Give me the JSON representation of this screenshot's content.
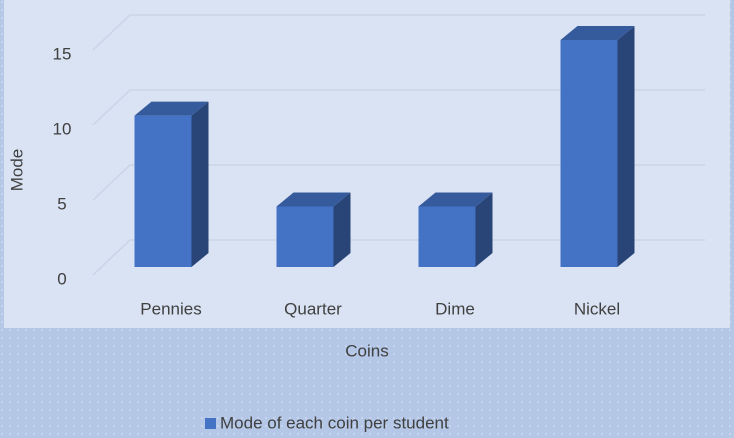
{
  "chart_data": {
    "type": "bar3d",
    "x_label": "Coins",
    "y_label": "Mode",
    "categories": [
      "Pennies",
      "Quarter",
      "Dime",
      "Nickel"
    ],
    "series": [
      {
        "name": "Mode of each coin per student",
        "color": "#4472c4",
        "values": [
          10,
          4,
          4,
          15
        ]
      }
    ],
    "ylim": [
      0,
      15
    ],
    "yticks": [
      0,
      5,
      10,
      15
    ],
    "grid": true,
    "legend": "bottom"
  }
}
